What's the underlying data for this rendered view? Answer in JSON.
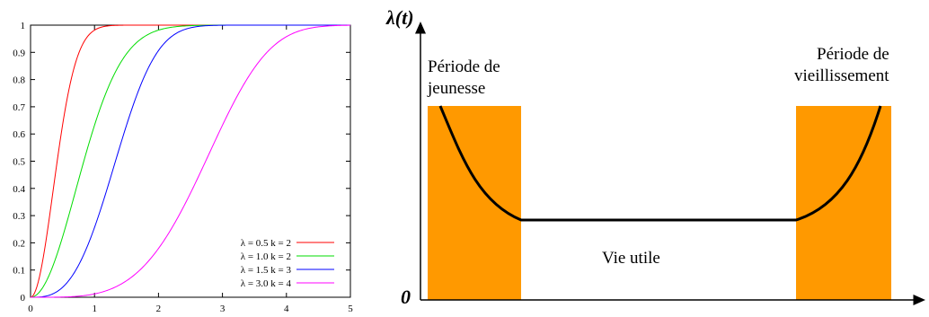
{
  "chart_data": [
    {
      "type": "line",
      "title": "",
      "xlabel": "",
      "ylabel": "",
      "xlim": [
        0,
        5
      ],
      "ylim": [
        0,
        1
      ],
      "x_ticks": [
        "0",
        "1",
        "2",
        "3",
        "4",
        "5"
      ],
      "y_ticks": [
        "0",
        "0.1",
        "0.2",
        "0.3",
        "0.4",
        "0.5",
        "0.6",
        "0.7",
        "0.8",
        "0.9",
        "1"
      ],
      "grid": false,
      "legend_position": "bottom-right",
      "series": [
        {
          "name": "λ = 0.5  k = 2",
          "color": "#ff0000",
          "lambda": 0.5,
          "k": 2
        },
        {
          "name": "λ = 1.0  k = 2",
          "color": "#00dd00",
          "lambda": 1.0,
          "k": 2
        },
        {
          "name": "λ = 1.5  k = 3",
          "color": "#0000ff",
          "lambda": 1.5,
          "k": 3
        },
        {
          "name": "λ = 3.0  k = 4",
          "color": "#ff00ff",
          "lambda": 3.0,
          "k": 4
        }
      ]
    },
    {
      "type": "area",
      "ylabel": "λ(t)",
      "origin_label": "0",
      "regions": [
        {
          "label_lines": [
            "Période de",
            "jeunesse"
          ],
          "color": "#ff9900"
        },
        {
          "label": "Vie utile"
        },
        {
          "label_lines": [
            "Période de",
            "vieillissement"
          ],
          "color": "#ff9900"
        }
      ]
    }
  ]
}
